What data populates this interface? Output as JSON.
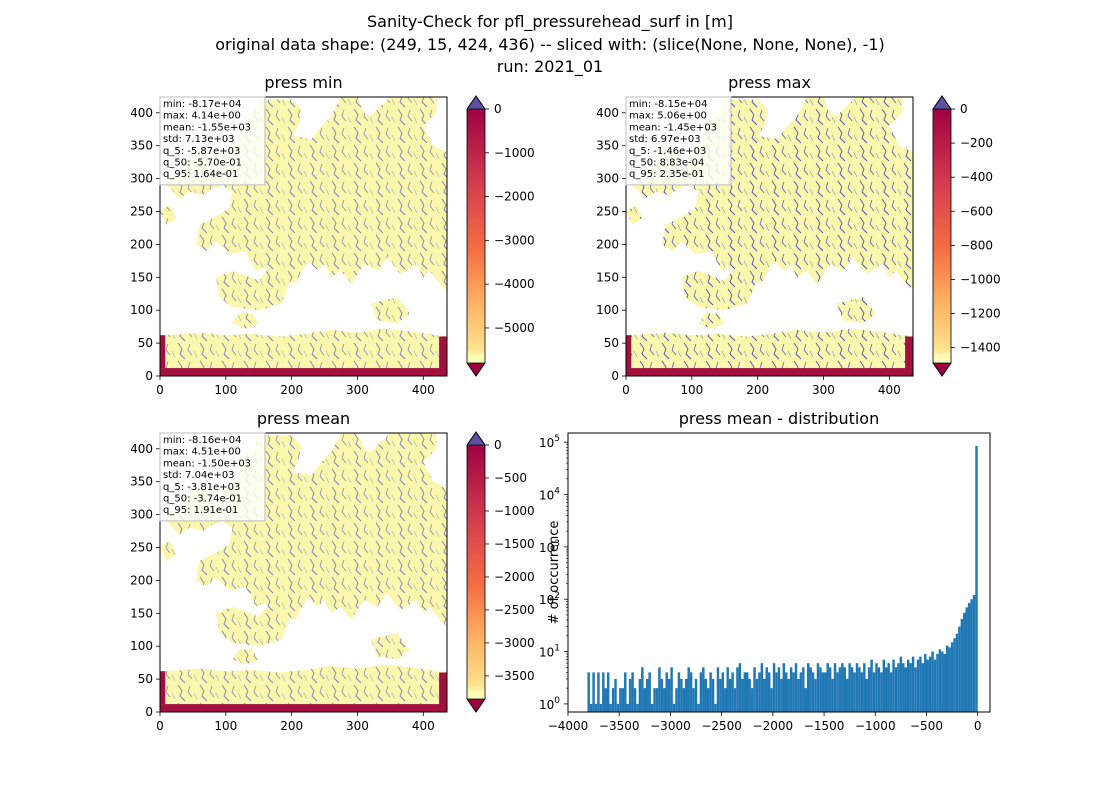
{
  "figure": {
    "title_line1": "Sanity-Check for pfl_pressurehead_surf in [m]",
    "title_line2": "original data shape: (249, 15, 424, 436) -- sliced with: (slice(None, None, None), -1)",
    "title_line3": "run: 2021_01"
  },
  "chart_data": [
    {
      "type": "heatmap",
      "title": "press min",
      "xlabel": "",
      "ylabel": "",
      "xlim": [
        0,
        436
      ],
      "ylim": [
        0,
        424
      ],
      "x_ticks": [
        0,
        100,
        200,
        300,
        400
      ],
      "y_ticks": [
        0,
        50,
        100,
        150,
        200,
        250,
        300,
        350,
        400
      ],
      "colormap": "Spectral",
      "colorbar_extend": "both",
      "colorbar_range": [
        -5800,
        0
      ],
      "colorbar_ticks": [
        0,
        -1000,
        -2000,
        -3000,
        -4000,
        -5000
      ],
      "colorbar_tick_labels": [
        "0",
        "−1000",
        "−2000",
        "−3000",
        "−4000",
        "−5000"
      ],
      "stats": [
        "min: -8.17e+04",
        "max: 4.14e+00",
        "mean: -1.55e+03",
        "std: 7.13e+03",
        "q_5: -5.87e+03",
        "q_50: -5.70e-01",
        "q_95: 1.64e-01"
      ]
    },
    {
      "type": "heatmap",
      "title": "press max",
      "xlabel": "",
      "ylabel": "",
      "xlim": [
        0,
        436
      ],
      "ylim": [
        0,
        424
      ],
      "x_ticks": [
        0,
        100,
        200,
        300,
        400
      ],
      "y_ticks": [
        0,
        50,
        100,
        150,
        200,
        250,
        300,
        350,
        400
      ],
      "colormap": "Spectral",
      "colorbar_extend": "both",
      "colorbar_range": [
        -1490,
        0
      ],
      "colorbar_ticks": [
        0,
        -200,
        -400,
        -600,
        -800,
        -1000,
        -1200,
        -1400
      ],
      "colorbar_tick_labels": [
        "0",
        "−200",
        "−400",
        "−600",
        "−800",
        "−1000",
        "−1200",
        "−1400"
      ],
      "stats": [
        "min: -8.15e+04",
        "max: 5.06e+00",
        "mean: -1.45e+03",
        "std: 6.97e+03",
        "q_5: -1.46e+03",
        "q_50: 8.83e-04",
        "q_95: 2.35e-01"
      ]
    },
    {
      "type": "heatmap",
      "title": "press mean",
      "xlabel": "",
      "ylabel": "",
      "xlim": [
        0,
        436
      ],
      "ylim": [
        0,
        424
      ],
      "x_ticks": [
        0,
        100,
        200,
        300,
        400
      ],
      "y_ticks": [
        0,
        50,
        100,
        150,
        200,
        250,
        300,
        350,
        400
      ],
      "colormap": "Spectral",
      "colorbar_extend": "both",
      "colorbar_range": [
        -3850,
        0
      ],
      "colorbar_ticks": [
        0,
        -500,
        -1000,
        -1500,
        -2000,
        -2500,
        -3000,
        -3500
      ],
      "colorbar_tick_labels": [
        "0",
        "−500",
        "−1000",
        "−1500",
        "−2000",
        "−2500",
        "−3000",
        "−3500"
      ],
      "stats": [
        "min: -8.16e+04",
        "max: 4.51e+00",
        "mean: -1.50e+03",
        "std: 7.04e+03",
        "q_5: -3.81e+03",
        "q_50: -3.74e-01",
        "q_95: 1.91e-01"
      ]
    },
    {
      "type": "bar",
      "title": "press mean - distribution",
      "xlabel": "",
      "ylabel": "# of occurrence",
      "y_scale": "log",
      "xlim": [
        -4000,
        120
      ],
      "ylim": [
        0.7,
        150000
      ],
      "x_ticks": [
        -4000,
        -3500,
        -3000,
        -2500,
        -2000,
        -1500,
        -1000,
        -500,
        0
      ],
      "x_tick_labels": [
        "−4000",
        "−3500",
        "−3000",
        "−2500",
        "−2000",
        "−1500",
        "−1000",
        "−500",
        "0"
      ],
      "y_ticks": [
        1,
        10,
        100,
        1000,
        10000,
        100000
      ],
      "bar_color": "#1f77b4",
      "bin_range": [
        -3810,
        0
      ],
      "values": [
        4,
        1,
        4,
        1,
        4,
        1,
        4,
        2,
        4,
        1,
        2,
        3,
        1,
        2,
        2,
        4,
        1,
        3,
        4,
        2,
        1,
        3,
        5,
        2,
        3,
        4,
        1,
        2,
        2,
        5,
        3,
        2,
        4,
        3,
        5,
        1,
        2,
        4,
        3,
        2,
        3,
        5,
        4,
        2,
        3,
        1,
        4,
        5,
        3,
        2,
        4,
        3,
        1,
        5,
        3,
        4,
        2,
        5,
        3,
        4,
        2,
        5,
        6,
        3,
        4,
        4,
        3,
        2,
        5,
        3,
        4,
        6,
        3,
        5,
        4,
        2,
        6,
        4,
        5,
        3,
        6,
        4,
        3,
        5,
        4,
        6,
        3,
        4,
        5,
        2,
        6,
        5,
        4,
        3,
        6,
        5,
        4,
        4,
        6,
        5,
        3,
        6,
        4,
        5,
        6,
        5,
        3,
        6,
        5,
        4,
        6,
        5,
        4,
        6,
        3,
        5,
        7,
        4,
        6,
        5,
        4,
        7,
        5,
        6,
        4,
        7,
        5,
        6,
        8,
        6,
        5,
        7,
        6,
        8,
        5,
        7,
        8,
        6,
        9,
        7,
        8,
        10,
        7,
        9,
        11,
        10,
        9,
        13,
        12,
        15,
        18,
        22,
        30,
        42,
        55,
        70,
        85,
        100,
        120,
        85000
      ]
    }
  ]
}
